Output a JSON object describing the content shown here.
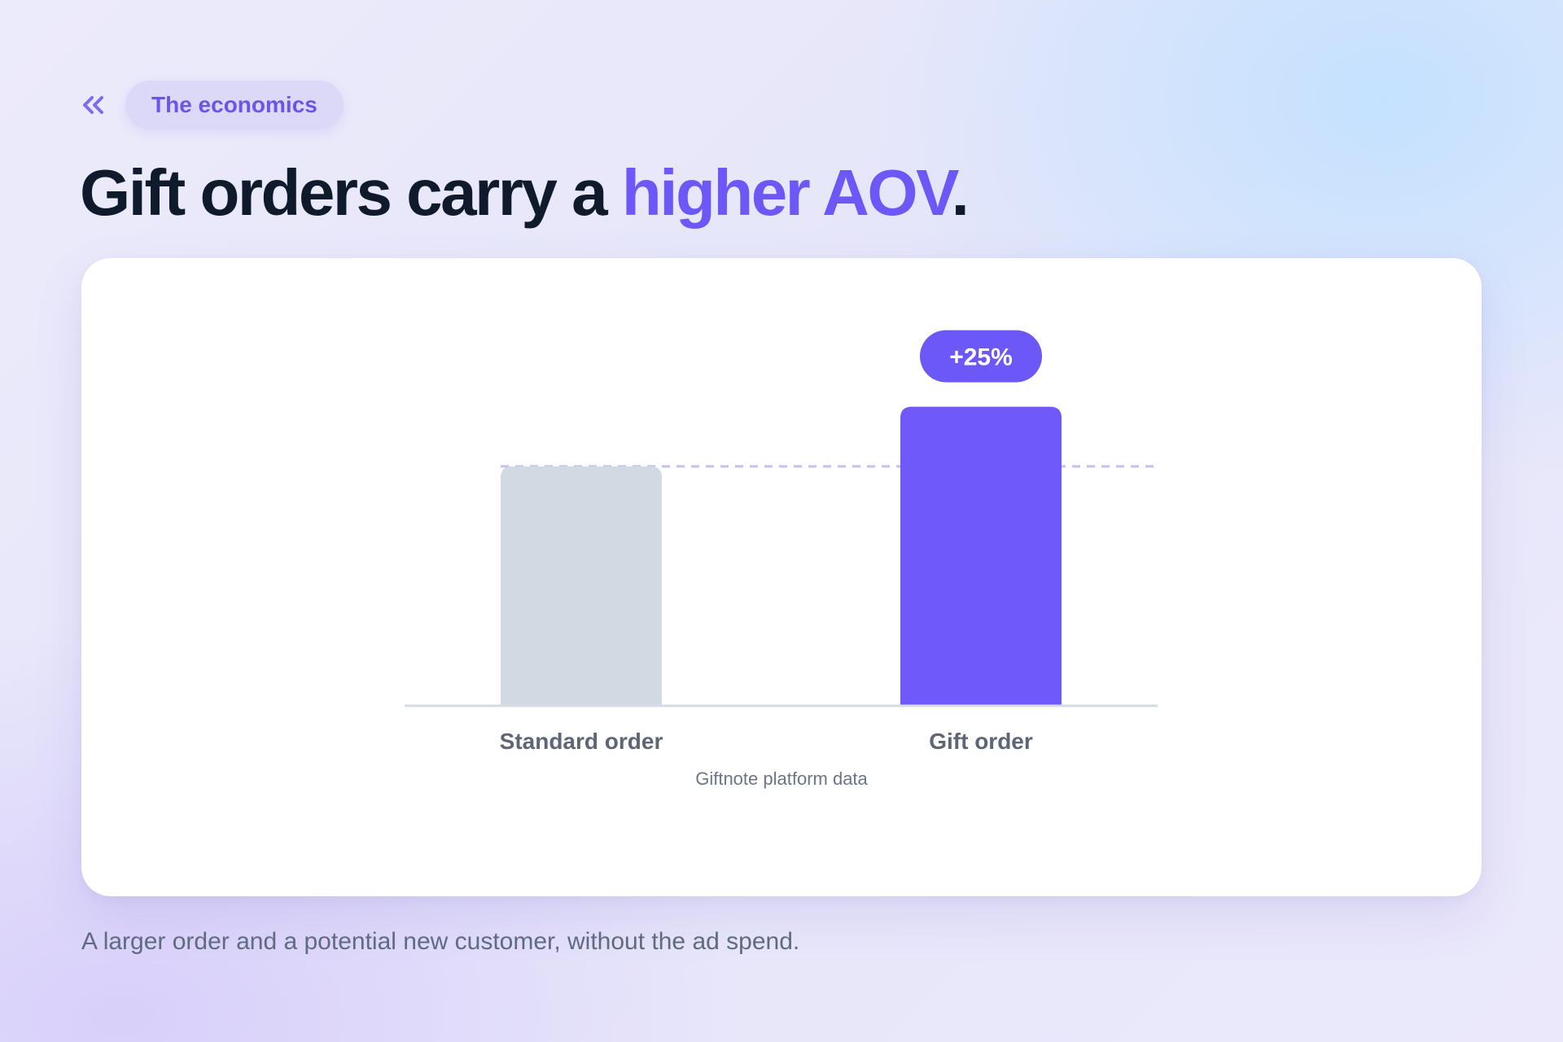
{
  "header": {
    "back_icon": "double-chevron-left-icon",
    "section_label": "The economics"
  },
  "title": {
    "main": "Gift orders carry a ",
    "accent": "higher AOV",
    "end": "."
  },
  "colors": {
    "accent": "#6c58f6",
    "standard_bar": "#d1d9e2",
    "gift_bar": "#6f5af9",
    "title": "#0f1b2d",
    "label": "#5c6677",
    "baseline": "#d4dbe3",
    "reference_line": "#c6bff5"
  },
  "chart_data": {
    "type": "bar",
    "categories": [
      "Standard order",
      "Gift order"
    ],
    "values": [
      100,
      125
    ],
    "ylim": [
      0,
      160
    ],
    "title": "",
    "xlabel": "",
    "ylabel": "",
    "grid": false,
    "reference_line": {
      "value": 100,
      "style": "dashed"
    },
    "annotation": {
      "category": "Gift order",
      "text": "+25%"
    },
    "source": "Giftnote platform data"
  },
  "caption": "A larger order and a potential new customer, without the ad spend."
}
